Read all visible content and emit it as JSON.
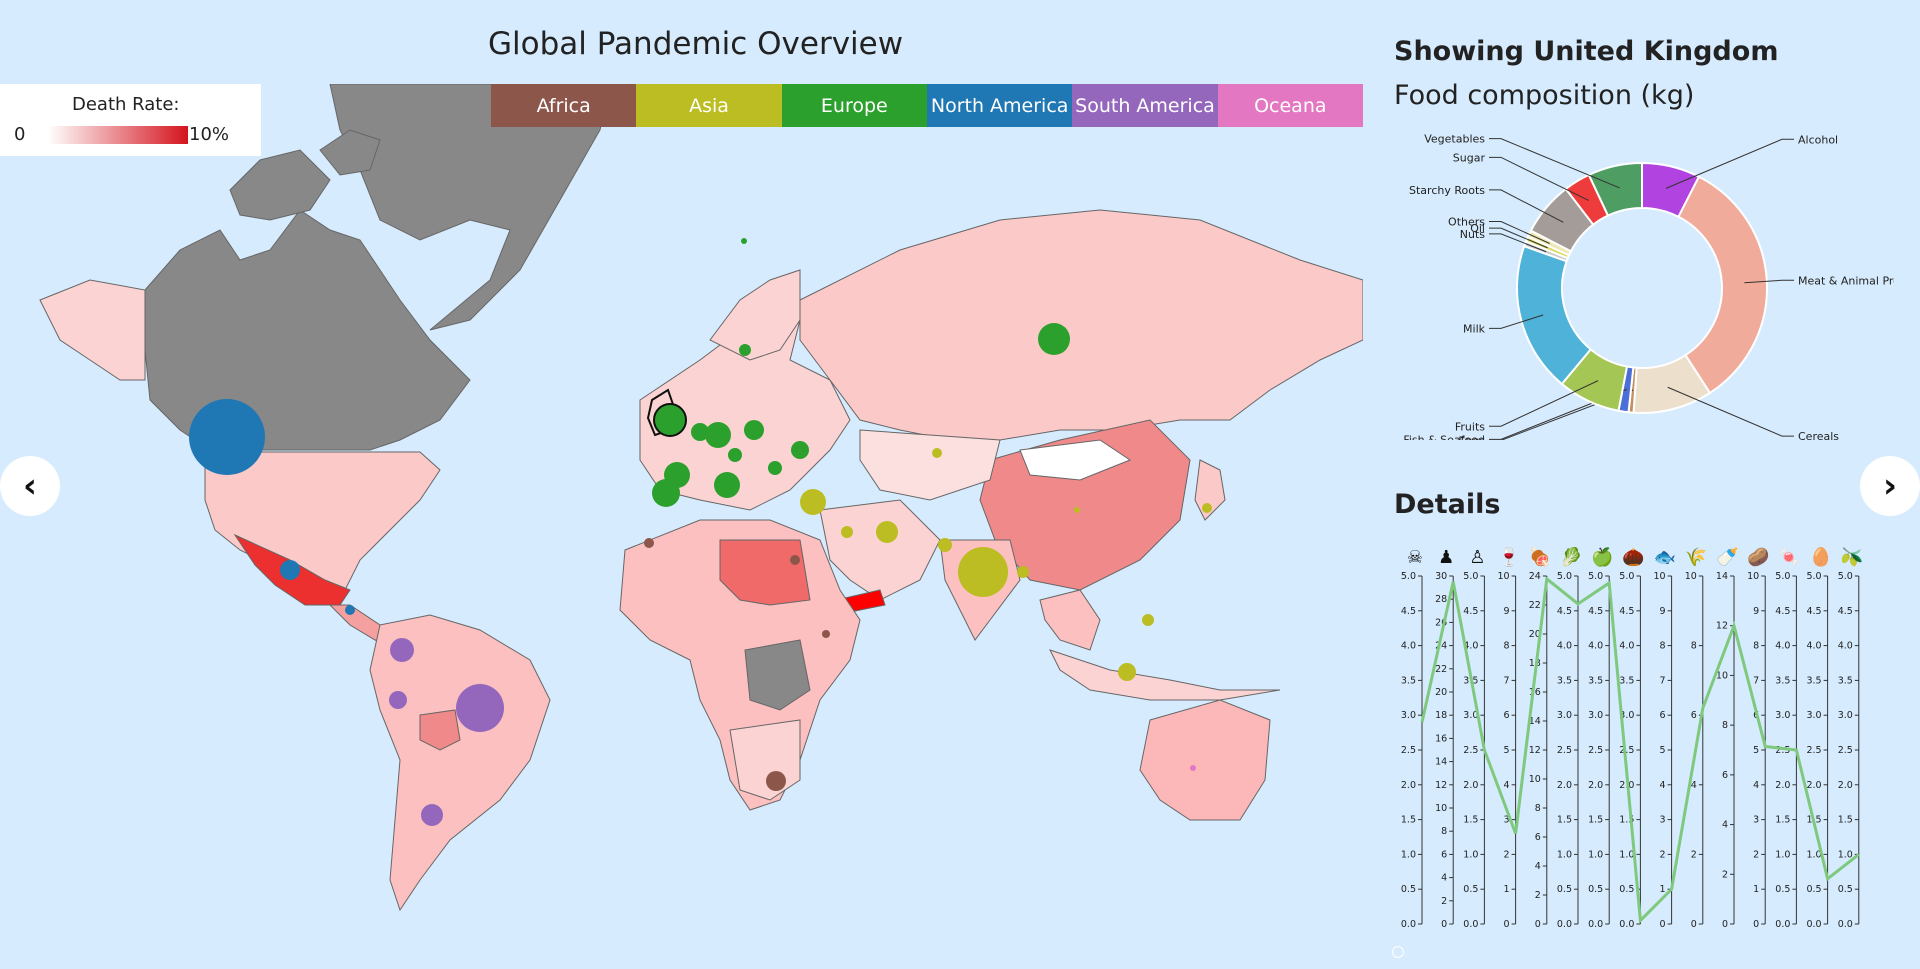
{
  "map": {
    "title": "Global Pandemic Overview",
    "legend": {
      "label": "Death Rate:",
      "min": "0",
      "max": "10%"
    },
    "continents": [
      {
        "label": "Africa",
        "color": "#8c564b"
      },
      {
        "label": "Asia",
        "color": "#bcbd22"
      },
      {
        "label": "Europe",
        "color": "#2ca02c"
      },
      {
        "label": "North America",
        "color": "#1f77b4"
      },
      {
        "label": "South America",
        "color": "#9467bd"
      },
      {
        "label": "Oceana",
        "color": "#e377c2"
      }
    ]
  },
  "nav": {
    "prev": "‹",
    "next": "›"
  },
  "side": {
    "title": "Showing United Kingdom",
    "chart_title": "Food composition (kg)",
    "details_title": "Details"
  },
  "chart_data": [
    {
      "type": "pie",
      "title": "Food composition (kg)",
      "labels": [
        "Alcohol",
        "Meat & Animal Proc",
        "Cereals",
        "Eggs",
        "Fish & Seafood",
        "Fruits",
        "Milk",
        "Nuts",
        "Oil",
        "Others",
        "Starchy Roots",
        "Sugar",
        "Vegetables"
      ],
      "values": [
        7.0,
        31.0,
        9.5,
        0.6,
        1.2,
        7.5,
        18.0,
        0.6,
        0.6,
        0.8,
        6.5,
        3.2,
        6.5
      ],
      "colors": [
        "#b144e0",
        "#f1ab9b",
        "#ece0cc",
        "#c49060",
        "#4b6fd6",
        "#a4c654",
        "#4fb2d8",
        "#c8c8c8",
        "#d8d860",
        "#f0e8b0",
        "#a49c98",
        "#ee3b3b",
        "#4e9d63"
      ]
    },
    {
      "type": "line",
      "axes": [
        {
          "max": 5.0,
          "ticks": [
            "0.0",
            "0.5",
            "1.0",
            "1.5",
            "2.0",
            "2.5",
            "3.0",
            "3.5",
            "4.0",
            "4.5",
            "5.0"
          ]
        },
        {
          "max": 30,
          "ticks": [
            "0",
            "2",
            "4",
            "6",
            "8",
            "10",
            "12",
            "14",
            "16",
            "18",
            "20",
            "22",
            "24",
            "26",
            "28",
            "30"
          ]
        },
        {
          "max": 5.0,
          "ticks": [
            "0.0",
            "0.5",
            "1.0",
            "1.5",
            "2.0",
            "2.5",
            "3.0",
            "3.5",
            "4.0",
            "4.5",
            "5.0"
          ]
        },
        {
          "max": 10,
          "ticks": [
            "0",
            "1",
            "2",
            "3",
            "4",
            "5",
            "6",
            "7",
            "8",
            "9",
            "10"
          ]
        },
        {
          "max": 24,
          "ticks": [
            "0",
            "2",
            "4",
            "6",
            "8",
            "10",
            "12",
            "14",
            "16",
            "18",
            "20",
            "22",
            "24"
          ]
        },
        {
          "max": 5.0,
          "ticks": [
            "0.0",
            "0.5",
            "1.0",
            "1.5",
            "2.0",
            "2.5",
            "3.0",
            "3.5",
            "4.0",
            "4.5",
            "5.0"
          ]
        },
        {
          "max": 5.0,
          "ticks": [
            "0.0",
            "0.5",
            "1.0",
            "1.5",
            "2.0",
            "2.5",
            "3.0",
            "3.5",
            "4.0",
            "4.5",
            "5.0"
          ]
        },
        {
          "max": 5.0,
          "ticks": [
            "0.0",
            "0.5",
            "1.0",
            "1.5",
            "2.0",
            "2.5",
            "3.0",
            "3.5",
            "4.0",
            "4.5",
            "5.0"
          ]
        },
        {
          "max": 10,
          "ticks": [
            "0",
            "1",
            "2",
            "3",
            "4",
            "5",
            "6",
            "7",
            "8",
            "9",
            "10"
          ]
        },
        {
          "max": 10,
          "ticks": [
            "0",
            "2",
            "4",
            "6",
            "8",
            "10"
          ]
        },
        {
          "max": 14,
          "ticks": [
            "0",
            "2",
            "4",
            "6",
            "8",
            "10",
            "12",
            "14"
          ]
        },
        {
          "max": 10,
          "ticks": [
            "0",
            "1",
            "2",
            "3",
            "4",
            "5",
            "6",
            "7",
            "8",
            "9",
            "10"
          ]
        },
        {
          "max": 5.0,
          "ticks": [
            "0.0",
            "0.5",
            "1.0",
            "1.5",
            "2.0",
            "2.5",
            "3.0",
            "3.5",
            "4.0",
            "4.5",
            "5.0"
          ]
        },
        {
          "max": 5.0,
          "ticks": [
            "0.0",
            "0.5",
            "1.0",
            "1.5",
            "2.0",
            "2.5",
            "3.0",
            "3.5",
            "4.0",
            "4.5",
            "5.0"
          ]
        },
        {
          "max": 5.0,
          "ticks": [
            "0.0",
            "0.5",
            "1.0",
            "1.5",
            "2.0",
            "2.5",
            "3.0",
            "3.5",
            "4.0",
            "4.5",
            "5.0"
          ]
        }
      ],
      "values": [
        2.9,
        29.5,
        2.5,
        2.6,
        23.8,
        4.6,
        4.9,
        0.05,
        1.0,
        6.2,
        12.0,
        5.1,
        2.5,
        0.65,
        1.0
      ],
      "line_color": "#7ec97e"
    }
  ],
  "detail_icons": [
    {
      "icon": "skull-icon",
      "glyph": "☠",
      "color": "#111"
    },
    {
      "icon": "obese-person-icon",
      "glyph": "♟",
      "color": "#111"
    },
    {
      "icon": "person-icon",
      "glyph": "♙",
      "color": "#111"
    },
    {
      "icon": "wine-bottle-icon",
      "glyph": "🍷",
      "color": "#8a2be2"
    },
    {
      "icon": "meat-icon",
      "glyph": "🍖",
      "color": "#f08070"
    },
    {
      "icon": "vegetable-icon",
      "glyph": "🥬",
      "color": "#2e8b57"
    },
    {
      "icon": "apple-icon",
      "glyph": "🍏",
      "color": "#7cc440"
    },
    {
      "icon": "acorn-icon",
      "glyph": "🌰",
      "color": "#8b5a2b"
    },
    {
      "icon": "fish-icon",
      "glyph": "🐟",
      "color": "#4169e1"
    },
    {
      "icon": "wheat-icon",
      "glyph": "🌾",
      "color": "#f5deb3"
    },
    {
      "icon": "milk-bottle-icon",
      "glyph": "🍼",
      "color": "#4fb2d8"
    },
    {
      "icon": "potato-icon",
      "glyph": "🥔",
      "color": "#8b7d7b"
    },
    {
      "icon": "sugar-icon",
      "glyph": "🍬",
      "color": "#e03030"
    },
    {
      "icon": "egg-icon",
      "glyph": "🥚",
      "color": "#f0a020"
    },
    {
      "icon": "oil-icon",
      "glyph": "🫒",
      "color": "#dada60"
    }
  ]
}
